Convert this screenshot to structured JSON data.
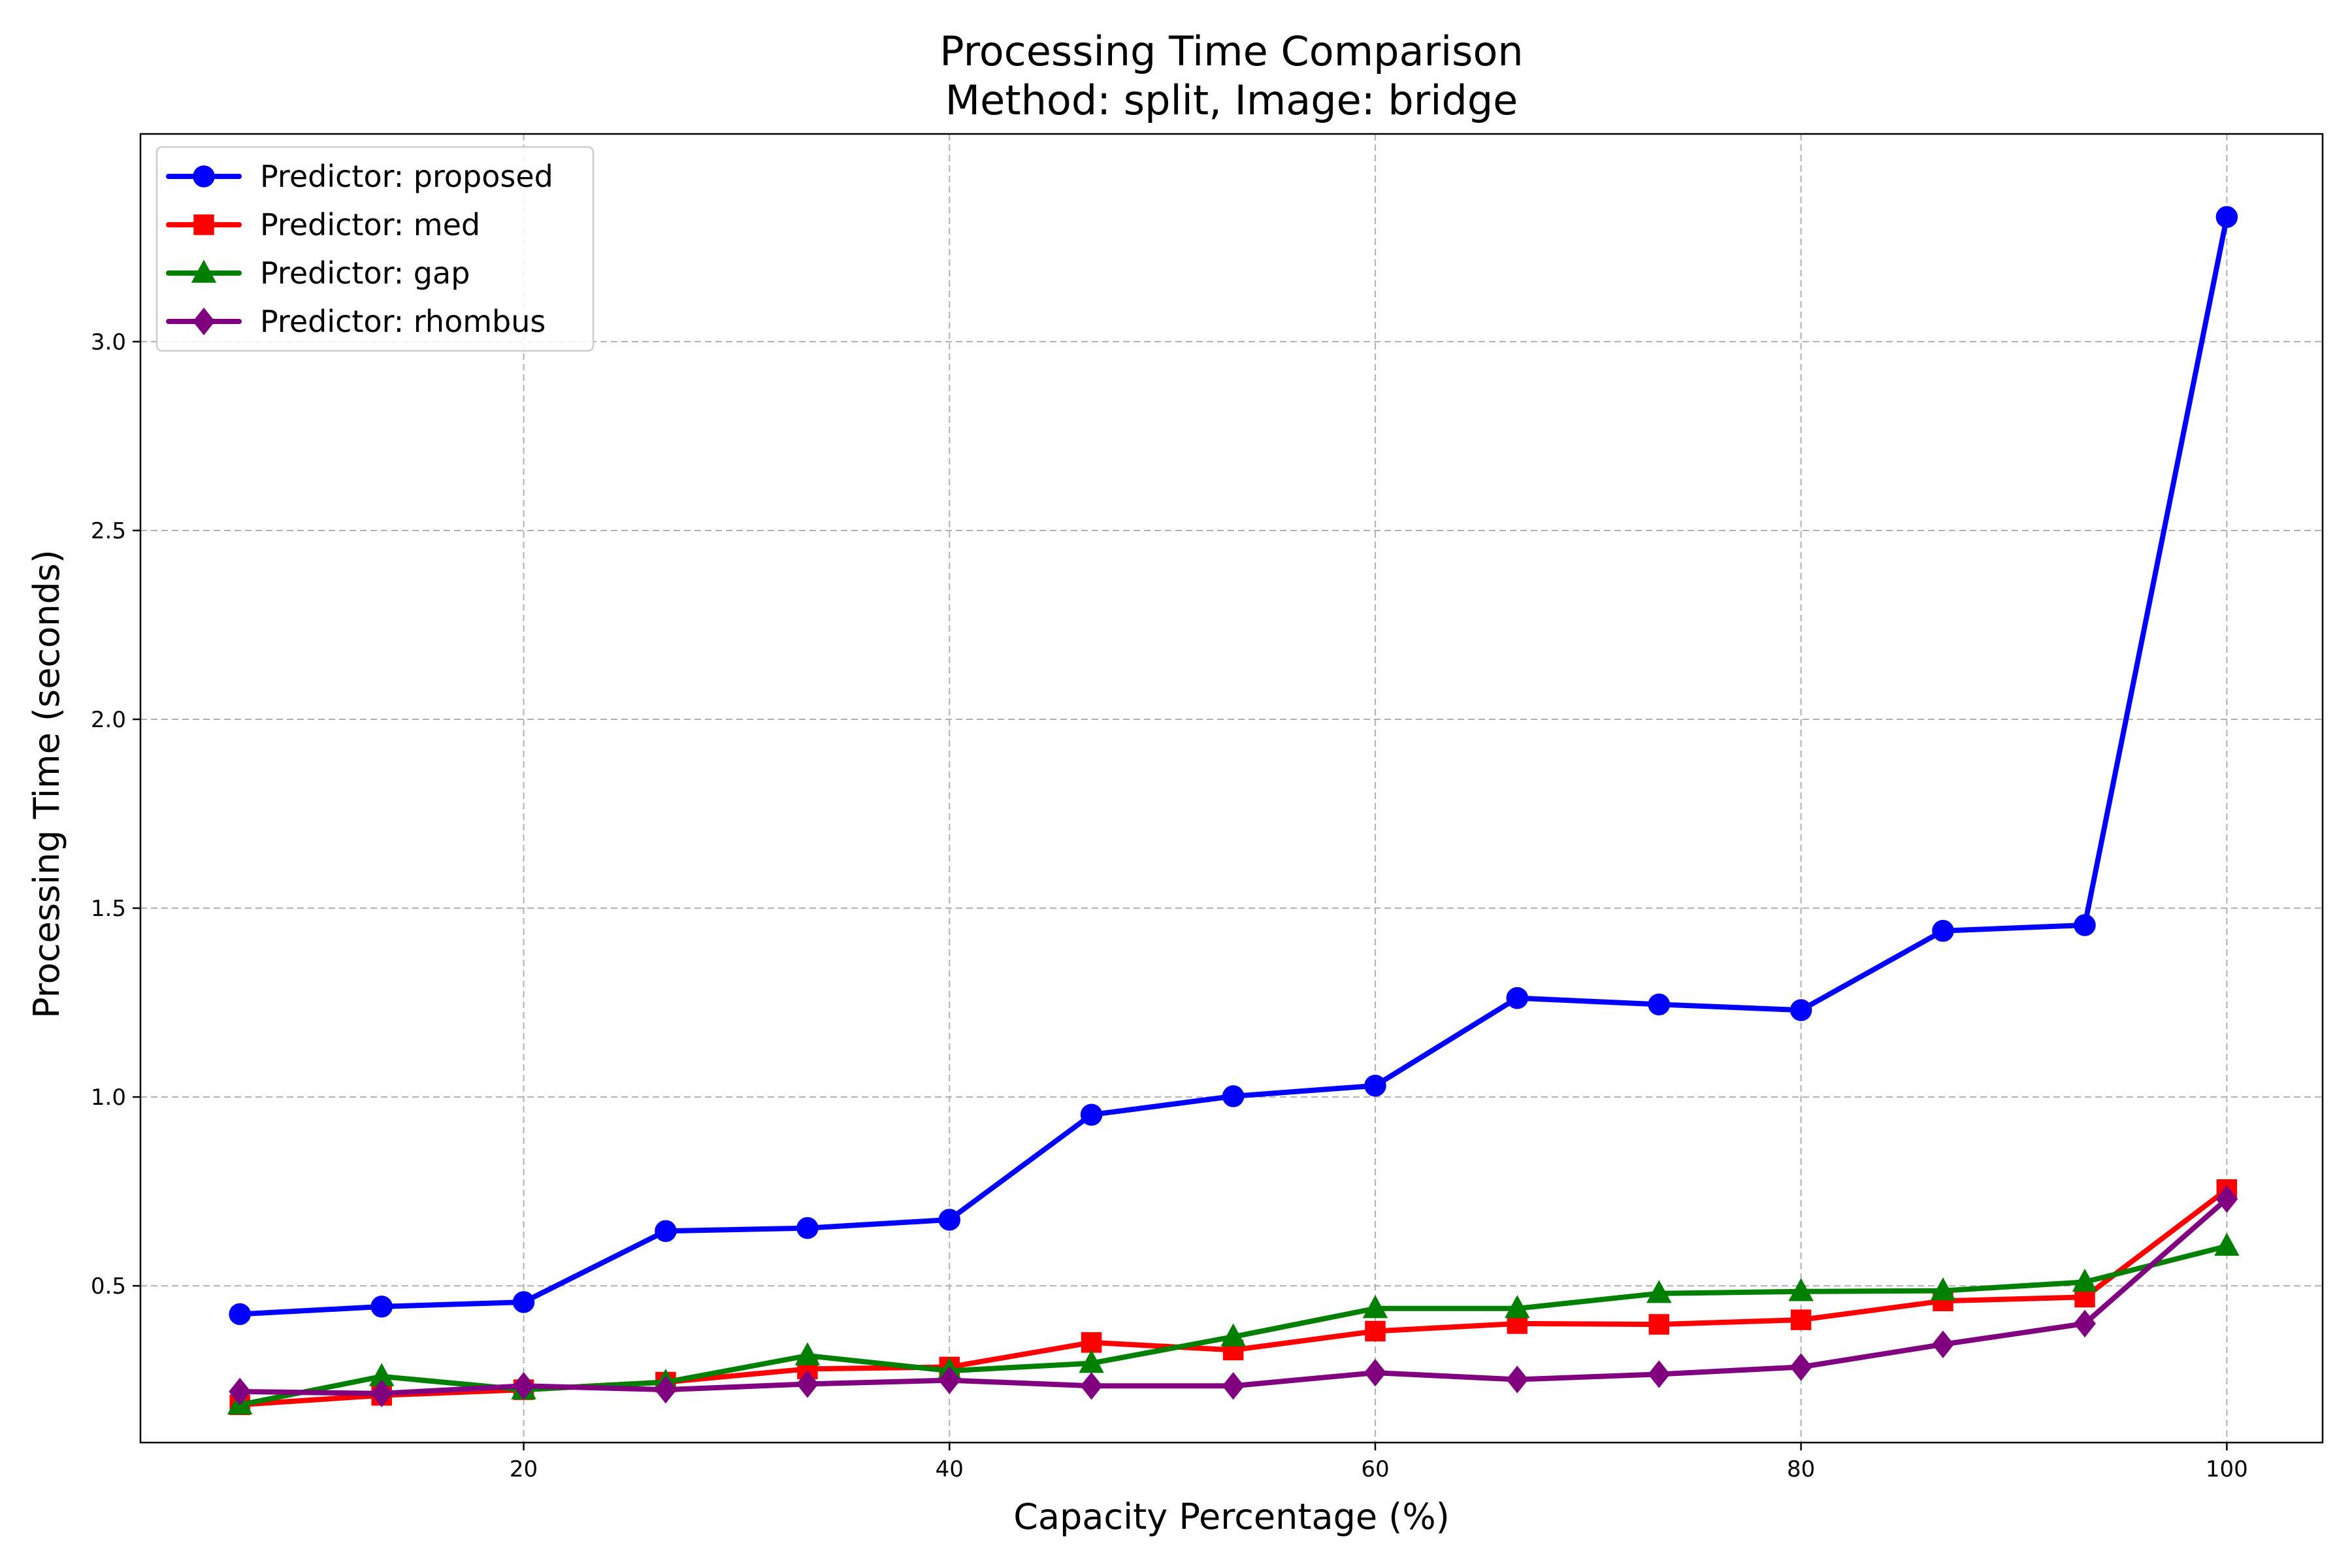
{
  "chart_data": {
    "type": "line",
    "title": "Processing Time Comparison",
    "subtitle": "Method: split, Image: bridge",
    "xlabel": "Capacity Percentage (%)",
    "ylabel": "Processing Time (seconds)",
    "xlim": [
      2,
      104.5
    ],
    "ylim": [
      0.085,
      3.55
    ],
    "xticks": [
      20,
      40,
      60,
      80,
      100
    ],
    "yticks": [
      0.5,
      1.0,
      1.5,
      2.0,
      2.5,
      3.0
    ],
    "xtick_labels": [
      "20",
      "40",
      "60",
      "80",
      "100"
    ],
    "ytick_labels": [
      "0.5",
      "1.0",
      "1.5",
      "2.0",
      "2.5",
      "3.0"
    ],
    "grid": true,
    "legend_position": "top-left",
    "x": [
      6.67,
      13.33,
      20.0,
      26.67,
      33.33,
      40.0,
      46.67,
      53.33,
      60.0,
      66.67,
      73.33,
      80.0,
      86.67,
      93.33,
      100.0
    ],
    "series": [
      {
        "name": "Predictor: proposed",
        "color": "#0000ff",
        "marker": "circle",
        "values": [
          0.425,
          0.445,
          0.457,
          0.645,
          0.653,
          0.675,
          0.953,
          1.002,
          1.03,
          1.262,
          1.245,
          1.23,
          1.44,
          1.455,
          3.33
        ]
      },
      {
        "name": "Predictor: med",
        "color": "#ff0000",
        "marker": "square",
        "values": [
          0.185,
          0.21,
          0.225,
          0.245,
          0.28,
          0.285,
          0.35,
          0.33,
          0.38,
          0.4,
          0.398,
          0.41,
          0.46,
          0.47,
          0.755
        ]
      },
      {
        "name": "Predictor: gap",
        "color": "#008000",
        "marker": "triangle",
        "values": [
          0.185,
          0.26,
          0.225,
          0.245,
          0.315,
          0.275,
          0.295,
          0.365,
          0.44,
          0.44,
          0.48,
          0.485,
          0.487,
          0.51,
          0.605
        ]
      },
      {
        "name": "Predictor: rhombus",
        "color": "#800080",
        "marker": "diamond",
        "values": [
          0.22,
          0.215,
          0.235,
          0.225,
          0.24,
          0.25,
          0.235,
          0.235,
          0.27,
          0.252,
          0.266,
          0.285,
          0.345,
          0.4,
          0.73
        ]
      }
    ]
  }
}
